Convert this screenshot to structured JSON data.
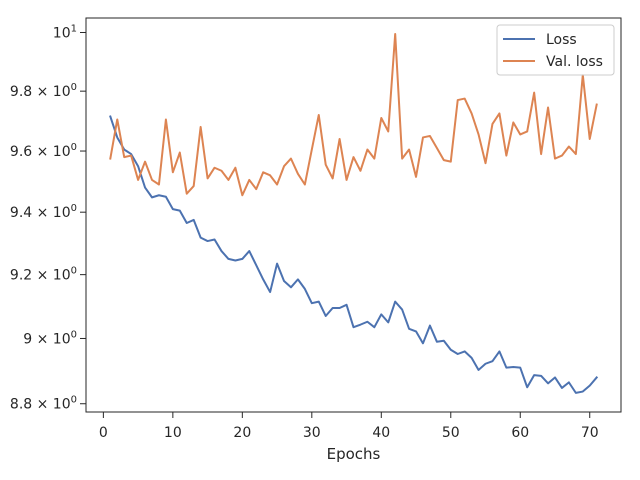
{
  "chart_data": {
    "type": "line",
    "title": "",
    "xlabel": "Epochs",
    "ylabel": "",
    "yscale": "log",
    "xlim": [
      -2.5,
      74.5
    ],
    "ylim": [
      8.775,
      10.05
    ],
    "grid": false,
    "legend_placement": "top-right",
    "x_ticks": [
      0,
      10,
      20,
      30,
      40,
      50,
      60,
      70
    ],
    "x_tick_labels": [
      "0",
      "10",
      "20",
      "30",
      "40",
      "50",
      "60",
      "70"
    ],
    "y_ticks": [
      8.8,
      9.0,
      9.2,
      9.4,
      9.6,
      9.8,
      10.0
    ],
    "y_tick_labels": [
      {
        "mantissa": "8.8 × 10",
        "exp": "0"
      },
      {
        "mantissa": "9 × 10",
        "exp": "0"
      },
      {
        "mantissa": "9.2 × 10",
        "exp": "0"
      },
      {
        "mantissa": "9.4 × 10",
        "exp": "0"
      },
      {
        "mantissa": "9.6 × 10",
        "exp": "0"
      },
      {
        "mantissa": "9.8 × 10",
        "exp": "0"
      },
      {
        "mantissa": "10",
        "exp": "1"
      }
    ],
    "x": [
      1,
      2,
      3,
      4,
      5,
      6,
      7,
      8,
      9,
      10,
      11,
      12,
      13,
      14,
      15,
      16,
      17,
      18,
      19,
      20,
      21,
      22,
      23,
      24,
      25,
      26,
      27,
      28,
      29,
      30,
      31,
      32,
      33,
      34,
      35,
      36,
      37,
      38,
      39,
      40,
      41,
      42,
      43,
      44,
      45,
      46,
      47,
      48,
      49,
      50,
      51,
      52,
      53,
      54,
      55,
      56,
      57,
      58,
      59,
      60,
      61,
      62,
      63,
      64,
      65,
      66,
      67,
      68,
      69,
      70,
      71
    ],
    "series": [
      {
        "name": "Loss",
        "color": "#4c72b0",
        "values": [
          9.715,
          9.645,
          9.605,
          9.59,
          9.55,
          9.48,
          9.448,
          9.455,
          9.45,
          9.41,
          9.405,
          9.365,
          9.375,
          9.318,
          9.307,
          9.312,
          9.275,
          9.25,
          9.245,
          9.25,
          9.275,
          9.23,
          9.185,
          9.145,
          9.235,
          9.18,
          9.16,
          9.185,
          9.155,
          9.11,
          9.115,
          9.07,
          9.095,
          9.095,
          9.105,
          9.035,
          9.043,
          9.052,
          9.035,
          9.075,
          9.05,
          9.115,
          9.09,
          9.03,
          9.022,
          8.985,
          9.04,
          8.99,
          8.993,
          8.965,
          8.952,
          8.96,
          8.94,
          8.903,
          8.922,
          8.93,
          8.96,
          8.91,
          8.912,
          8.91,
          8.85,
          8.887,
          8.885,
          8.862,
          8.88,
          8.848,
          8.865,
          8.833,
          8.837,
          8.855,
          8.88
        ]
      },
      {
        "name": "Val. loss",
        "color": "#dd8452",
        "values": [
          9.575,
          9.705,
          9.58,
          9.585,
          9.505,
          9.565,
          9.505,
          9.49,
          9.705,
          9.53,
          9.595,
          9.46,
          9.485,
          9.68,
          9.51,
          9.545,
          9.535,
          9.505,
          9.545,
          9.455,
          9.505,
          9.475,
          9.53,
          9.52,
          9.49,
          9.55,
          9.575,
          9.525,
          9.49,
          9.605,
          9.72,
          9.555,
          9.51,
          9.64,
          9.505,
          9.58,
          9.535,
          9.605,
          9.575,
          9.71,
          9.665,
          9.995,
          9.575,
          9.605,
          9.515,
          9.645,
          9.65,
          9.61,
          9.57,
          9.565,
          9.77,
          9.775,
          9.725,
          9.655,
          9.56,
          9.69,
          9.725,
          9.585,
          9.695,
          9.655,
          9.665,
          9.795,
          9.59,
          9.745,
          9.575,
          9.585,
          9.615,
          9.59,
          9.855,
          9.64,
          9.755
        ]
      }
    ]
  }
}
